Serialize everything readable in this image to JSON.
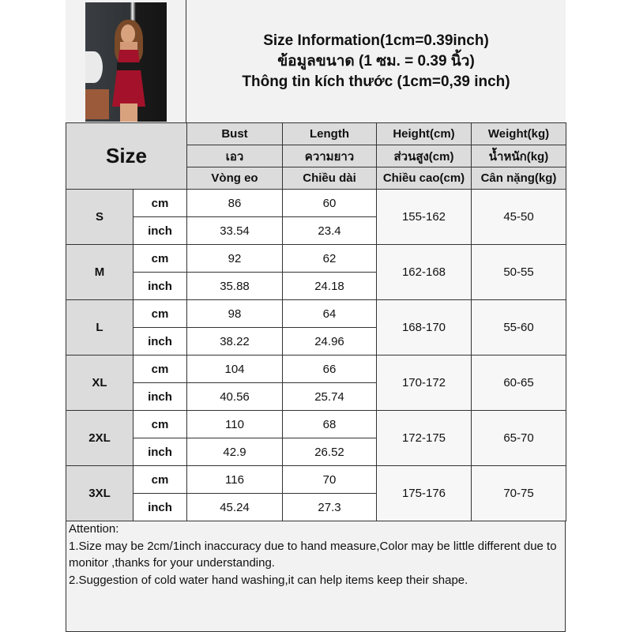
{
  "header": {
    "title_en": "Size Information(1cm=0.39inch)",
    "title_th": "ข้อมูลขนาด (1 ซม. = 0.39 นิ้ว)",
    "title_vi": "Thông tin kích thước (1cm=0,39 inch)",
    "product_image": "red satin lace nightdress"
  },
  "table": {
    "size_label": "Size",
    "columns": [
      {
        "en": "Bust",
        "th": "เอว",
        "vi": "Vòng eo"
      },
      {
        "en": "Length",
        "th": "ความยาว",
        "vi": "Chiều dài"
      },
      {
        "en": "Height(cm)",
        "th": "ส่วนสูง(cm)",
        "vi": "Chiều cao(cm)"
      },
      {
        "en": "Weight(kg)",
        "th": "น้ำหนัก(kg)",
        "vi": "Cân nặng(kg)"
      }
    ],
    "unit_cm": "cm",
    "unit_inch": "inch",
    "rows": [
      {
        "size": "S",
        "bust_cm": "86",
        "bust_inch": "33.54",
        "length_cm": "60",
        "length_inch": "23.4",
        "height": "155-162",
        "weight": "45-50"
      },
      {
        "size": "M",
        "bust_cm": "92",
        "bust_inch": "35.88",
        "length_cm": "62",
        "length_inch": "24.18",
        "height": "162-168",
        "weight": "50-55"
      },
      {
        "size": "L",
        "bust_cm": "98",
        "bust_inch": "38.22",
        "length_cm": "64",
        "length_inch": "24.96",
        "height": "168-170",
        "weight": "55-60"
      },
      {
        "size": "XL",
        "bust_cm": "104",
        "bust_inch": "40.56",
        "length_cm": "66",
        "length_inch": "25.74",
        "height": "170-172",
        "weight": "60-65"
      },
      {
        "size": "2XL",
        "bust_cm": "110",
        "bust_inch": "42.9",
        "length_cm": "68",
        "length_inch": "26.52",
        "height": "172-175",
        "weight": "65-70"
      },
      {
        "size": "3XL",
        "bust_cm": "116",
        "bust_inch": "45.24",
        "length_cm": "70",
        "length_inch": "27.3",
        "height": "175-176",
        "weight": "70-75"
      }
    ]
  },
  "notes": {
    "heading": "Attention:",
    "line1": "1.Size may be 2cm/1inch inaccuracy due to hand measure,Color may be little different due to monitor ,thanks for your understanding.",
    "line2": "2.Suggestion of cold water hand washing,it can help items keep their shape."
  }
}
